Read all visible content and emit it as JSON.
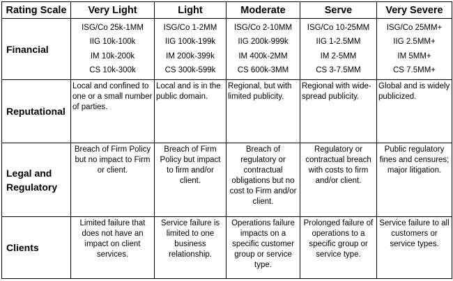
{
  "header": {
    "corner": "Rating Scale",
    "columns": [
      "Very Light",
      "Light",
      "Moderate",
      "Serve",
      "Very Severe"
    ]
  },
  "rows": {
    "financial": {
      "label": "Financial",
      "cells": [
        [
          "ISG/Co 25k-1MM",
          "IIG 10k-100k",
          "IM 10k-200k",
          "CS 10k-300k"
        ],
        [
          "ISG/Co 1-2MM",
          "IIG 100k-199k",
          "IM 200k-399k",
          "CS 300k-599k"
        ],
        [
          "ISG/Co 2-10MM",
          "IIG 200k-999k",
          "IM 400k-2MM",
          "CS 600k-3MM"
        ],
        [
          "ISG/Co 10-25MM",
          "IIG 1-2.5MM",
          "IM 2-5MM",
          "CS 3-7.5MM"
        ],
        [
          "ISG/Co 25MM+",
          "IIG 2.5MM+",
          "IM 5MM+",
          "CS 7.5MM+"
        ]
      ]
    },
    "reputational": {
      "label": "Reputational",
      "cells": [
        "Local and confined to one or a small number of parties.",
        "Local and is in the public domain.",
        "Regional, but with limited publicity.",
        "Regional with wide-spread publicity.",
        "Global and is widely publicized."
      ]
    },
    "legal": {
      "label": "Legal and Regulatory",
      "cells": [
        "Breach of Firm Policy but no impact to Firm or client.",
        "Breach of Firm Policy but impact to firm and/or client.",
        "Breach of regulatory or contractual obligations but no cost to Firm and/or client.",
        "Regulatory or contractual breach with costs to firm and/or client.",
        "Public regulatory fines and censures; major litigation."
      ]
    },
    "clients": {
      "label": "Clients",
      "cells": [
        "Limited failure that does not have an impact on client services.",
        "Service failure is limited to one business relationship.",
        "Operations failure impacts on a specific customer group or service type.",
        "Prolonged failure of operations to a specific group or service type.",
        "Service failure to all customers or service types."
      ]
    }
  }
}
